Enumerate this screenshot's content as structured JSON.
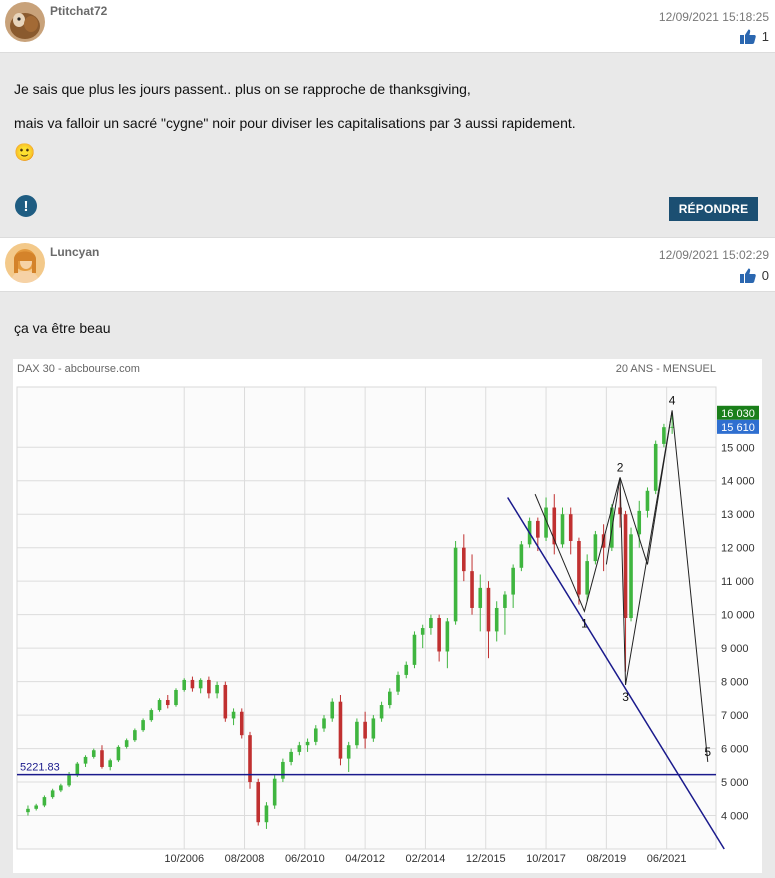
{
  "posts": [
    {
      "username": "Ptitchat72",
      "date": "12/09/2021 15:18:25",
      "likes": "1",
      "lines": [
        "Je sais que plus les jours passent.. plus on se rapproche de thanksgiving,",
        "mais va falloir un sacré \"cygne\" noir pour diviser les capitalisations par 3 aussi rapidement."
      ],
      "emoji": "🙂",
      "reply_label": "RÉPONDRE",
      "report_icon": "!"
    },
    {
      "username": "Luncyan",
      "date": "12/09/2021 15:02:29",
      "likes": "0",
      "text": "ça va être beau"
    }
  ],
  "chart_data": {
    "type": "candlestick",
    "source": "DAX 30 - abcbourse.com",
    "period": "20 ANS - MENSUEL",
    "x_labels": [
      "10/2006",
      "08/2008",
      "06/2010",
      "04/2012",
      "02/2014",
      "12/2015",
      "10/2017",
      "08/2019",
      "06/2021"
    ],
    "y_ticks": [
      "4 000",
      "5 000",
      "6 000",
      "7 000",
      "8 000",
      "9 000",
      "10 000",
      "11 000",
      "12 000",
      "13 000",
      "14 000",
      "15 000"
    ],
    "y_values": [
      4000,
      5000,
      6000,
      7000,
      8000,
      9000,
      10000,
      11000,
      12000,
      13000,
      14000,
      15000
    ],
    "ylim": [
      3000,
      16800
    ],
    "x_range": [
      "2001-09",
      "2022-12"
    ],
    "price_tags": [
      {
        "label": "16 030",
        "value": 16030,
        "color": "#1a7f1a"
      },
      {
        "label": "15 610",
        "value": 15610,
        "color": "#2f6fd0"
      }
    ],
    "hline": {
      "label": "5221.83",
      "value": 5221.83,
      "color": "#1a1a8c"
    },
    "trendline": {
      "from": [
        "2016-08",
        13500
      ],
      "to": [
        "2023-03",
        3000
      ],
      "color": "#1a1a8c"
    },
    "wave_labels": [
      {
        "label": "1",
        "date": "2018-12",
        "value": 10100
      },
      {
        "label": "2",
        "date": "2020-01",
        "value": 14100
      },
      {
        "label": "3",
        "date": "2020-03",
        "value": 7900
      },
      {
        "label": "4",
        "date": "2021-08",
        "value": 16100
      },
      {
        "label": "5",
        "date": "2022-09",
        "value": 5600
      }
    ],
    "wave_path": [
      [
        "2017-06",
        13600
      ],
      [
        "2018-12",
        10100
      ],
      [
        "2020-01",
        14100
      ],
      [
        "2020-03",
        7900
      ],
      [
        "2021-08",
        16100
      ],
      [
        "2022-09",
        5600
      ]
    ],
    "extra_path": [
      [
        "2019-08",
        11500
      ],
      [
        "2020-01",
        14100
      ],
      [
        "2020-11",
        11500
      ],
      [
        "2021-08",
        16100
      ]
    ],
    "candles": [
      [
        "2002-01",
        4100,
        4300,
        4000,
        4200
      ],
      [
        "2002-04",
        4200,
        4350,
        4150,
        4300
      ],
      [
        "2002-07",
        4300,
        4600,
        4250,
        4550
      ],
      [
        "2002-10",
        4550,
        4800,
        4500,
        4750
      ],
      [
        "2003-01",
        4750,
        4950,
        4700,
        4900
      ],
      [
        "2003-04",
        4900,
        5300,
        4850,
        5200
      ],
      [
        "2003-07",
        5200,
        5600,
        5150,
        5550
      ],
      [
        "2003-10",
        5550,
        5800,
        5450,
        5750
      ],
      [
        "2004-01",
        5750,
        6000,
        5700,
        5950
      ],
      [
        "2004-04",
        5950,
        6100,
        5400,
        5450
      ],
      [
        "2004-07",
        5450,
        5700,
        5350,
        5650
      ],
      [
        "2004-10",
        5650,
        6100,
        5600,
        6050
      ],
      [
        "2005-01",
        6050,
        6300,
        6000,
        6250
      ],
      [
        "2005-04",
        6250,
        6600,
        6200,
        6550
      ],
      [
        "2005-07",
        6550,
        6900,
        6500,
        6850
      ],
      [
        "2005-10",
        6850,
        7200,
        6800,
        7150
      ],
      [
        "2006-01",
        7150,
        7500,
        7100,
        7450
      ],
      [
        "2006-04",
        7450,
        7600,
        7200,
        7300
      ],
      [
        "2006-07",
        7300,
        7800,
        7250,
        7750
      ],
      [
        "2006-10",
        7750,
        8100,
        7700,
        8050
      ],
      [
        "2007-01",
        8050,
        8150,
        7700,
        7800
      ],
      [
        "2007-04",
        7800,
        8100,
        7650,
        8050
      ],
      [
        "2007-07",
        8050,
        8150,
        7500,
        7650
      ],
      [
        "2007-10",
        7650,
        8000,
        7500,
        7900
      ],
      [
        "2008-01",
        7900,
        8000,
        6800,
        6900
      ],
      [
        "2008-04",
        6900,
        7200,
        6700,
        7100
      ],
      [
        "2008-07",
        7100,
        7200,
        6300,
        6400
      ],
      [
        "2008-10",
        6400,
        6500,
        4800,
        5000
      ],
      [
        "2009-01",
        5000,
        5100,
        3700,
        3800
      ],
      [
        "2009-04",
        3800,
        4400,
        3600,
        4300
      ],
      [
        "2009-07",
        4300,
        5200,
        4200,
        5100
      ],
      [
        "2009-10",
        5100,
        5700,
        5000,
        5600
      ],
      [
        "2010-01",
        5600,
        6000,
        5500,
        5900
      ],
      [
        "2010-04",
        5900,
        6200,
        5800,
        6100
      ],
      [
        "2010-07",
        6100,
        6300,
        5900,
        6200
      ],
      [
        "2010-10",
        6200,
        6700,
        6100,
        6600
      ],
      [
        "2011-01",
        6600,
        7000,
        6500,
        6900
      ],
      [
        "2011-04",
        6900,
        7500,
        6800,
        7400
      ],
      [
        "2011-07",
        7400,
        7600,
        5500,
        5700
      ],
      [
        "2011-10",
        5700,
        6200,
        5300,
        6100
      ],
      [
        "2012-01",
        6100,
        6900,
        6000,
        6800
      ],
      [
        "2012-04",
        6800,
        7100,
        6000,
        6300
      ],
      [
        "2012-07",
        6300,
        7000,
        6200,
        6900
      ],
      [
        "2012-10",
        6900,
        7400,
        6800,
        7300
      ],
      [
        "2013-01",
        7300,
        7800,
        7200,
        7700
      ],
      [
        "2013-04",
        7700,
        8300,
        7600,
        8200
      ],
      [
        "2013-07",
        8200,
        8600,
        8100,
        8500
      ],
      [
        "2013-10",
        8500,
        9500,
        8400,
        9400
      ],
      [
        "2014-01",
        9400,
        9700,
        9000,
        9600
      ],
      [
        "2014-04",
        9600,
        10000,
        9400,
        9900
      ],
      [
        "2014-07",
        9900,
        10000,
        8600,
        8900
      ],
      [
        "2014-10",
        8900,
        9900,
        8400,
        9800
      ],
      [
        "2015-01",
        9800,
        12200,
        9700,
        12000
      ],
      [
        "2015-04",
        12000,
        12400,
        11000,
        11300
      ],
      [
        "2015-07",
        11300,
        11800,
        10000,
        10200
      ],
      [
        "2015-10",
        10200,
        11200,
        9500,
        10800
      ],
      [
        "2016-01",
        10800,
        11000,
        8700,
        9500
      ],
      [
        "2016-04",
        9500,
        10400,
        9200,
        10200
      ],
      [
        "2016-07",
        10200,
        10700,
        9400,
        10600
      ],
      [
        "2016-10",
        10600,
        11500,
        10200,
        11400
      ],
      [
        "2017-01",
        11400,
        12200,
        11300,
        12100
      ],
      [
        "2017-04",
        12100,
        12900,
        12000,
        12800
      ],
      [
        "2017-07",
        12800,
        12900,
        11900,
        12300
      ],
      [
        "2017-10",
        12300,
        13500,
        12200,
        13200
      ],
      [
        "2018-01",
        13200,
        13600,
        11800,
        12100
      ],
      [
        "2018-04",
        12100,
        13200,
        12000,
        13000
      ],
      [
        "2018-07",
        13000,
        13200,
        11800,
        12200
      ],
      [
        "2018-10",
        12200,
        12300,
        10300,
        10600
      ],
      [
        "2019-01",
        10600,
        11800,
        10400,
        11600
      ],
      [
        "2019-04",
        11600,
        12500,
        11500,
        12400
      ],
      [
        "2019-07",
        12400,
        12700,
        11300,
        12000
      ],
      [
        "2019-10",
        12000,
        13300,
        11900,
        13200
      ],
      [
        "2020-01",
        13200,
        13800,
        12600,
        13000
      ],
      [
        "2020-03",
        13000,
        13100,
        8300,
        9900
      ],
      [
        "2020-05",
        9900,
        12600,
        9800,
        12400
      ],
      [
        "2020-08",
        12400,
        13400,
        12000,
        13100
      ],
      [
        "2020-11",
        13100,
        13800,
        12900,
        13700
      ],
      [
        "2021-02",
        13700,
        15200,
        13600,
        15100
      ],
      [
        "2021-05",
        15100,
        15700,
        15000,
        15600
      ],
      [
        "2021-08",
        15600,
        16030,
        15400,
        15610
      ]
    ]
  }
}
